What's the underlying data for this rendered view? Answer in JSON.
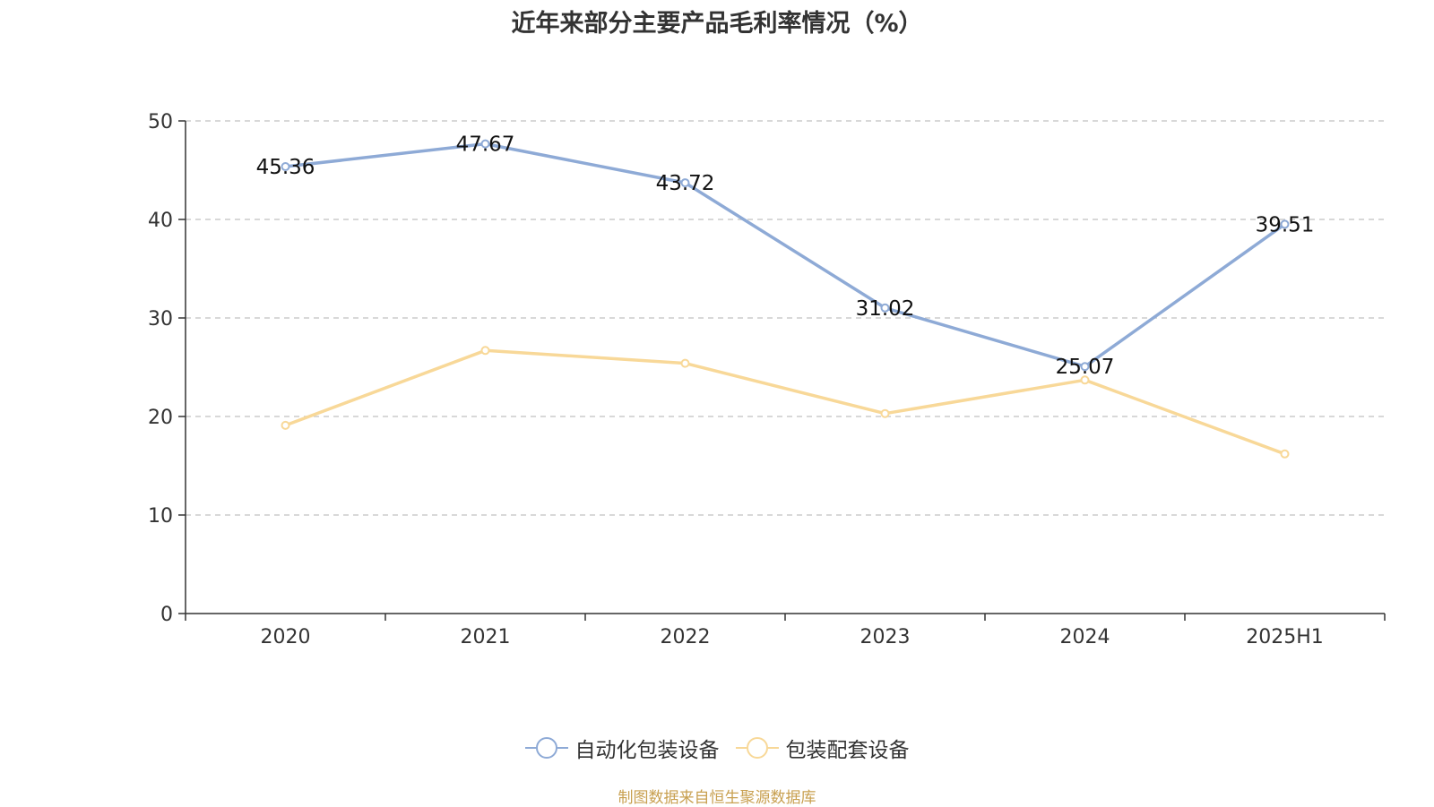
{
  "chart_data": {
    "type": "line",
    "title": "近年来部分主要产品毛利率情况（%）",
    "categories": [
      "2020",
      "2021",
      "2022",
      "2023",
      "2024",
      "2025H1"
    ],
    "ylim": [
      0,
      50
    ],
    "yticks": [
      "0",
      "10",
      "20",
      "30",
      "40",
      "50"
    ],
    "grid": true,
    "legend_position": "bottom",
    "series": [
      {
        "name": "自动化包装设备",
        "values": [
          45.36,
          47.67,
          43.72,
          31.02,
          25.07,
          39.51
        ],
        "labels": [
          "45.36",
          "47.67",
          "43.72",
          "31.02",
          "25.07",
          "39.51"
        ],
        "color": "#8eaad6"
      },
      {
        "name": "包装配套设备",
        "values": [
          19.1,
          26.7,
          25.4,
          20.3,
          23.7,
          16.2
        ],
        "color": "#f8d898"
      }
    ]
  },
  "source": "制图数据来自恒生聚源数据库"
}
